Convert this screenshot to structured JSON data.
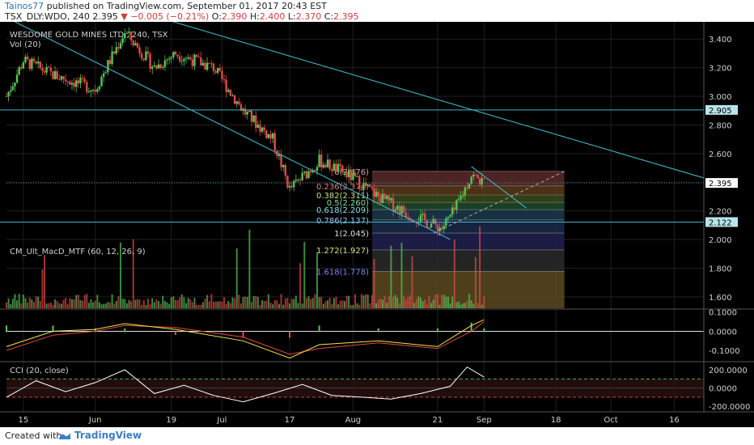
{
  "header": {
    "author": "Tainos77",
    "published": "published on TradingView.com, September 01, 2017 20:43 EST",
    "symbol": "TSX_DLY:WDO, 240",
    "last": "2.395",
    "change": "−0.005 (−0.21%)",
    "o_label": "O:",
    "o": "2.390",
    "h_label": "H:",
    "h": "2.400",
    "l_label": "L:",
    "l": "2.370",
    "c_label": "C:",
    "c": "2.395"
  },
  "footer": {
    "created_with": "Created with",
    "brand": "TradingView"
  },
  "colors": {
    "background": "#000000",
    "up": "#56c456",
    "down": "#e04a4a",
    "trend": "#3fb5c5",
    "grid": "#1f1f1f",
    "axis_text": "#d0d0d0",
    "macd": "#f0e64a",
    "signal": "#e04a4a",
    "cci": "#ffffff"
  },
  "chart_data": [
    {
      "type": "candlestick",
      "title": "WESDOME GOLD MINES LTD., 240, TSX",
      "volume_label": "Vol (20)",
      "y_ticks": [
        "3.400",
        "3.200",
        "3.000",
        "2.800",
        "2.600",
        "2.400",
        "2.200",
        "2.000",
        "1.800",
        "1.600"
      ],
      "ylim": [
        1.52,
        3.52
      ],
      "x_ticks": [
        "15",
        "Jun",
        "19",
        "Jul",
        "17",
        "Aug",
        "21",
        "Sep",
        "18",
        "Oct",
        "16"
      ],
      "price_marker": "2.395",
      "horizontal_levels": [
        {
          "value": 2.905,
          "label": "2.905"
        },
        {
          "value": 2.122,
          "label": "2.122"
        }
      ],
      "trendlines": [
        {
          "from": [
            "May 11",
            3.55
          ],
          "to": [
            "Aug 24",
            2.0
          ]
        },
        {
          "from": [
            "Jun 8",
            3.62
          ],
          "to": [
            "Oct 23",
            2.43
          ]
        },
        {
          "from": [
            "Aug 29",
            2.51
          ],
          "to": [
            "Sep 11",
            2.22
          ]
        }
      ],
      "fibonacci": [
        {
          "ratio": "0",
          "price": "2.476",
          "text": "0(2.476)"
        },
        {
          "ratio": "0.236",
          "price": "2.374",
          "text": "0.236(2.374)"
        },
        {
          "ratio": "0.382",
          "price": "2.311",
          "text": "0.382(2.311)"
        },
        {
          "ratio": "0.5",
          "price": "2.260",
          "text": "0.5(2.260)"
        },
        {
          "ratio": "0.618",
          "price": "2.209",
          "text": "0.618(2.209)"
        },
        {
          "ratio": "0.786",
          "price": "2.137",
          "text": "0.786(2.137)"
        },
        {
          "ratio": "1",
          "price": "2.045",
          "text": "1(2.045)"
        },
        {
          "ratio": "1.272",
          "price": "1.927",
          "text": "1.272(1.927)"
        },
        {
          "ratio": "1.618",
          "price": "1.778",
          "text": "1.618(1.778)"
        }
      ],
      "key_points": [
        {
          "x": "May 11",
          "y": 3.0
        },
        {
          "x": "May 15",
          "y": 3.25
        },
        {
          "x": "May 22",
          "y": 3.15
        },
        {
          "x": "Jun 1",
          "y": 3.05
        },
        {
          "x": "Jun 8",
          "y": 3.45
        },
        {
          "x": "Jun 15",
          "y": 3.2
        },
        {
          "x": "Jun 20",
          "y": 3.3
        },
        {
          "x": "Jun 29",
          "y": 3.2
        },
        {
          "x": "Jul 6",
          "y": 2.9
        },
        {
          "x": "Jul 13",
          "y": 2.7
        },
        {
          "x": "Jul 17",
          "y": 2.35
        },
        {
          "x": "Jul 24",
          "y": 2.55
        },
        {
          "x": "Jul 31",
          "y": 2.45
        },
        {
          "x": "Aug 7",
          "y": 2.3
        },
        {
          "x": "Aug 14",
          "y": 2.18
        },
        {
          "x": "Aug 22",
          "y": 2.08
        },
        {
          "x": "Aug 25",
          "y": 2.2
        },
        {
          "x": "Aug 29",
          "y": 2.45
        },
        {
          "x": "Sep 1",
          "y": 2.395
        }
      ]
    },
    {
      "type": "line",
      "title": "CM_Ult_MacD_MTF (60, 12, 26, 9)",
      "y_ticks": [
        "0.1000",
        "0.0000",
        "-0.1000"
      ],
      "ylim": [
        -0.15,
        0.12
      ],
      "series": [
        {
          "points": [
            [
              "May 11",
              -0.08
            ],
            [
              "May 22",
              0.0
            ],
            [
              "Jun 1",
              0.01
            ],
            [
              "Jun 8",
              0.04
            ],
            [
              "Jun 20",
              0.01
            ],
            [
              "Jul 6",
              -0.05
            ],
            [
              "Jul 17",
              -0.14
            ],
            [
              "Jul 24",
              -0.07
            ],
            [
              "Aug 7",
              -0.05
            ],
            [
              "Aug 21",
              -0.08
            ],
            [
              "Aug 29",
              0.03
            ],
            [
              "Sep 1",
              0.06
            ]
          ]
        },
        {
          "points": [
            [
              "May 11",
              -0.1
            ],
            [
              "May 22",
              -0.02
            ],
            [
              "Jun 1",
              0.0
            ],
            [
              "Jun 8",
              0.03
            ],
            [
              "Jun 20",
              0.02
            ],
            [
              "Jul 6",
              -0.03
            ],
            [
              "Jul 17",
              -0.12
            ],
            [
              "Jul 24",
              -0.09
            ],
            [
              "Aug 7",
              -0.06
            ],
            [
              "Aug 21",
              -0.09
            ],
            [
              "Aug 29",
              0.0
            ],
            [
              "Sep 1",
              0.05
            ]
          ]
        }
      ]
    },
    {
      "type": "line",
      "title": "CCI (20, close)",
      "y_ticks": [
        "200.0000",
        "0.0000",
        "-200.0000"
      ],
      "ylim": [
        -260,
        280
      ],
      "series": [
        {
          "points": [
            [
              "May 11",
              -100
            ],
            [
              "May 18",
              80
            ],
            [
              "May 25",
              -40
            ],
            [
              "Jun 1",
              60
            ],
            [
              "Jun 8",
              200
            ],
            [
              "Jun 15",
              -60
            ],
            [
              "Jun 22",
              30
            ],
            [
              "Jun 29",
              -80
            ],
            [
              "Jul 6",
              -150
            ],
            [
              "Jul 13",
              -60
            ],
            [
              "Jul 20",
              40
            ],
            [
              "Jul 27",
              -80
            ],
            [
              "Aug 3",
              -100
            ],
            [
              "Aug 10",
              -120
            ],
            [
              "Aug 17",
              -60
            ],
            [
              "Aug 24",
              20
            ],
            [
              "Aug 28",
              230
            ],
            [
              "Sep 1",
              120
            ]
          ]
        }
      ]
    }
  ]
}
